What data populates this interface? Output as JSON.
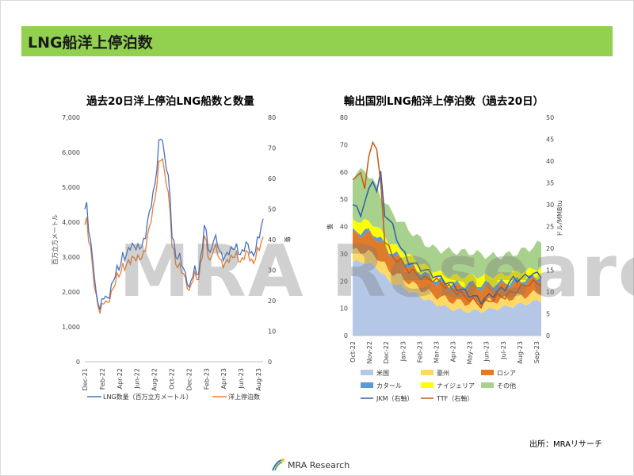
{
  "header": {
    "title": "LNG船洋上停泊数"
  },
  "source": "出所：MRAリサーチ",
  "footer": {
    "logo_text": "MRA Research"
  },
  "watermark": "MRA Research",
  "colors": {
    "header": "#92d050",
    "lng": "#4472c4",
    "ships": "#ed7d31",
    "us": "#b4c7e7",
    "australia": "#ffd966",
    "russia": "#e07b29",
    "qatar": "#5b9bd5",
    "nigeria": "#ffff00",
    "others": "#a9d18e",
    "jkm": "#2e5ea8",
    "ttf": "#c55a11"
  },
  "chart_data": [
    {
      "type": "line",
      "title": "過去20日洋上停泊LNG船数と数量",
      "x_tick_labels": [
        "Dec-21",
        "Feb-22",
        "Apr-22",
        "Jun-22",
        "Aug-22",
        "Oct-22",
        "Dec-22",
        "Feb-23",
        "Apr-23",
        "Jun-23",
        "Aug-23"
      ],
      "y_left": {
        "label": "百万立方メートル",
        "ticks": [
          "0",
          "1,000",
          "2,000",
          "3,000",
          "4,000",
          "5,000",
          "6,000",
          "7,000"
        ],
        "lim": [
          0,
          7000
        ]
      },
      "y_right": {
        "label": "隻",
        "ticks": [
          "0",
          "10",
          "20",
          "30",
          "40",
          "50",
          "60",
          "70",
          "80"
        ],
        "lim": [
          0,
          80
        ]
      },
      "weeks": 95,
      "series": [
        {
          "name": "LNG数量（百万立方メートル）",
          "axis": "left",
          "anchors": [
            [
              0,
              4300
            ],
            [
              1,
              4450
            ],
            [
              2,
              3900
            ],
            [
              3,
              3500
            ],
            [
              5,
              2500
            ],
            [
              6,
              1800
            ],
            [
              8,
              1600
            ],
            [
              10,
              1900
            ],
            [
              12,
              1700
            ],
            [
              13,
              1950
            ],
            [
              14,
              2200
            ],
            [
              16,
              2500
            ],
            [
              18,
              2650
            ],
            [
              20,
              3100
            ],
            [
              22,
              3000
            ],
            [
              24,
              3300
            ],
            [
              26,
              3400
            ],
            [
              28,
              3200
            ],
            [
              30,
              3300
            ],
            [
              32,
              3700
            ],
            [
              34,
              4200
            ],
            [
              36,
              4800
            ],
            [
              38,
              5600
            ],
            [
              39,
              6200
            ],
            [
              40,
              6400
            ],
            [
              41,
              6300
            ],
            [
              42,
              5900
            ],
            [
              43,
              5700
            ],
            [
              44,
              5300
            ],
            [
              45,
              4600
            ],
            [
              46,
              3600
            ],
            [
              48,
              3100
            ],
            [
              50,
              3000
            ],
            [
              52,
              2600
            ],
            [
              54,
              2400
            ],
            [
              55,
              2100
            ],
            [
              56,
              2300
            ],
            [
              58,
              2600
            ],
            [
              60,
              2600
            ],
            [
              62,
              3300
            ],
            [
              63,
              3800
            ],
            [
              64,
              3700
            ],
            [
              65,
              3400
            ],
            [
              66,
              3100
            ],
            [
              68,
              3500
            ],
            [
              70,
              3400
            ],
            [
              72,
              3100
            ],
            [
              74,
              2900
            ],
            [
              76,
              3200
            ],
            [
              78,
              3300
            ],
            [
              80,
              3200
            ],
            [
              82,
              3100
            ],
            [
              84,
              3300
            ],
            [
              86,
              3300
            ],
            [
              88,
              3100
            ],
            [
              90,
              3200
            ],
            [
              92,
              3600
            ],
            [
              94,
              4100
            ]
          ]
        },
        {
          "name": "洋上停泊数",
          "axis": "right",
          "anchors": [
            [
              0,
              44
            ],
            [
              1,
              46
            ],
            [
              2,
              41
            ],
            [
              3,
              38
            ],
            [
              5,
              25
            ],
            [
              6,
              20
            ],
            [
              8,
              17
            ],
            [
              10,
              20
            ],
            [
              12,
              18
            ],
            [
              13,
              21
            ],
            [
              14,
              23
            ],
            [
              16,
              26
            ],
            [
              18,
              28
            ],
            [
              20,
              32
            ],
            [
              22,
              31
            ],
            [
              24,
              33
            ],
            [
              26,
              35
            ],
            [
              28,
              33
            ],
            [
              30,
              34
            ],
            [
              32,
              38
            ],
            [
              34,
              43
            ],
            [
              36,
              50
            ],
            [
              38,
              59
            ],
            [
              39,
              64
            ],
            [
              40,
              66
            ],
            [
              41,
              66
            ],
            [
              42,
              62
            ],
            [
              43,
              60
            ],
            [
              44,
              55
            ],
            [
              45,
              48
            ],
            [
              46,
              38
            ],
            [
              48,
              33
            ],
            [
              50,
              31
            ],
            [
              52,
              28
            ],
            [
              54,
              26
            ],
            [
              55,
              23
            ],
            [
              56,
              25
            ],
            [
              58,
              28
            ],
            [
              60,
              28
            ],
            [
              62,
              35
            ],
            [
              63,
              40
            ],
            [
              64,
              39
            ],
            [
              65,
              36
            ],
            [
              66,
              33
            ],
            [
              68,
              37
            ],
            [
              70,
              36
            ],
            [
              72,
              33
            ],
            [
              74,
              31
            ],
            [
              76,
              34
            ],
            [
              78,
              35
            ],
            [
              80,
              34
            ],
            [
              82,
              33
            ],
            [
              84,
              35
            ],
            [
              86,
              35
            ],
            [
              88,
              33
            ],
            [
              90,
              34
            ],
            [
              92,
              37
            ],
            [
              94,
              41
            ]
          ]
        }
      ]
    },
    {
      "type": "area",
      "title": "輸出国別LNG船洋上停泊数（過去20日）",
      "x_tick_labels": [
        "Oct-22",
        "Nov-22",
        "Dec-22",
        "Jan-23",
        "Feb-23",
        "Mar-23",
        "Apr-23",
        "May-23",
        "Jun-23",
        "Jul-23",
        "Aug-23",
        "Sep-23"
      ],
      "y_left": {
        "label": "隻",
        "ticks": [
          "0",
          "10",
          "20",
          "30",
          "40",
          "50",
          "60",
          "70",
          "80"
        ],
        "lim": [
          0,
          80
        ]
      },
      "y_right": {
        "label": "ドル/MMBtu",
        "ticks": [
          "0",
          "5",
          "10",
          "15",
          "20",
          "25",
          "30",
          "35",
          "40",
          "45",
          "50"
        ],
        "lim": [
          0,
          50
        ]
      },
      "weeks": 48,
      "stacked_series": [
        {
          "name": "米国",
          "anchors": [
            [
              0,
              27
            ],
            [
              3,
              27
            ],
            [
              6,
              25
            ],
            [
              9,
              20
            ],
            [
              12,
              18
            ],
            [
              16,
              15
            ],
            [
              20,
              12
            ],
            [
              24,
              10
            ],
            [
              28,
              9
            ],
            [
              32,
              9
            ],
            [
              36,
              10
            ],
            [
              40,
              11
            ],
            [
              44,
              12
            ],
            [
              47,
              13
            ]
          ]
        },
        {
          "name": "豪州",
          "anchors": [
            [
              0,
              4
            ],
            [
              8,
              4
            ],
            [
              16,
              3
            ],
            [
              24,
              3
            ],
            [
              32,
              3
            ],
            [
              40,
              3
            ],
            [
              47,
              3
            ]
          ]
        },
        {
          "name": "ロシア",
          "anchors": [
            [
              0,
              6
            ],
            [
              6,
              7
            ],
            [
              12,
              6
            ],
            [
              18,
              5
            ],
            [
              24,
              5
            ],
            [
              30,
              6
            ],
            [
              36,
              5
            ],
            [
              42,
              5
            ],
            [
              47,
              5
            ]
          ]
        },
        {
          "name": "カタール",
          "anchors": [
            [
              0,
              1
            ],
            [
              10,
              1
            ],
            [
              20,
              1
            ],
            [
              30,
              1
            ],
            [
              40,
              1
            ],
            [
              47,
              1
            ]
          ]
        },
        {
          "name": "ナイジェリア",
          "anchors": [
            [
              0,
              4
            ],
            [
              8,
              3
            ],
            [
              16,
              3
            ],
            [
              24,
              3
            ],
            [
              32,
              3
            ],
            [
              40,
              3
            ],
            [
              47,
              3
            ]
          ]
        },
        {
          "name": "その他",
          "anchors": [
            [
              0,
              16
            ],
            [
              3,
              19
            ],
            [
              6,
              14
            ],
            [
              9,
              12
            ],
            [
              12,
              10
            ],
            [
              16,
              9
            ],
            [
              20,
              8
            ],
            [
              24,
              9
            ],
            [
              28,
              9
            ],
            [
              32,
              8
            ],
            [
              36,
              7
            ],
            [
              40,
              7
            ],
            [
              44,
              8
            ],
            [
              47,
              9
            ]
          ]
        }
      ],
      "line_series": [
        {
          "name": "JKM（右軸）",
          "axis": "right",
          "anchors": [
            [
              0,
              30
            ],
            [
              2,
              28
            ],
            [
              4,
              33
            ],
            [
              5,
              36
            ],
            [
              6,
              33
            ],
            [
              7,
              37
            ],
            [
              8,
              28
            ],
            [
              10,
              25
            ],
            [
              12,
              20
            ],
            [
              14,
              17
            ],
            [
              16,
              16
            ],
            [
              18,
              15
            ],
            [
              20,
              14
            ],
            [
              22,
              13
            ],
            [
              24,
              12
            ],
            [
              26,
              11
            ],
            [
              28,
              10
            ],
            [
              30,
              9
            ],
            [
              32,
              8
            ],
            [
              34,
              9
            ],
            [
              36,
              10
            ],
            [
              38,
              11
            ],
            [
              40,
              13
            ],
            [
              42,
              13
            ],
            [
              44,
              14
            ],
            [
              47,
              14
            ]
          ]
        },
        {
          "name": "TTF（右軸）",
          "axis": "right",
          "anchors": [
            [
              0,
              35
            ],
            [
              2,
              38
            ],
            [
              3,
              33
            ],
            [
              4,
              41
            ],
            [
              5,
              45
            ],
            [
              6,
              42
            ],
            [
              7,
              35
            ],
            [
              8,
              22
            ],
            [
              10,
              18
            ],
            [
              12,
              17
            ],
            [
              14,
              15
            ],
            [
              16,
              14
            ],
            [
              18,
              13
            ],
            [
              20,
              13
            ],
            [
              22,
              12
            ],
            [
              24,
              11
            ],
            [
              26,
              10
            ],
            [
              28,
              9
            ],
            [
              30,
              8
            ],
            [
              32,
              7
            ],
            [
              34,
              8
            ],
            [
              36,
              9
            ],
            [
              38,
              9
            ],
            [
              40,
              10
            ],
            [
              42,
              11
            ],
            [
              44,
              12
            ],
            [
              47,
              12
            ]
          ]
        }
      ]
    }
  ]
}
